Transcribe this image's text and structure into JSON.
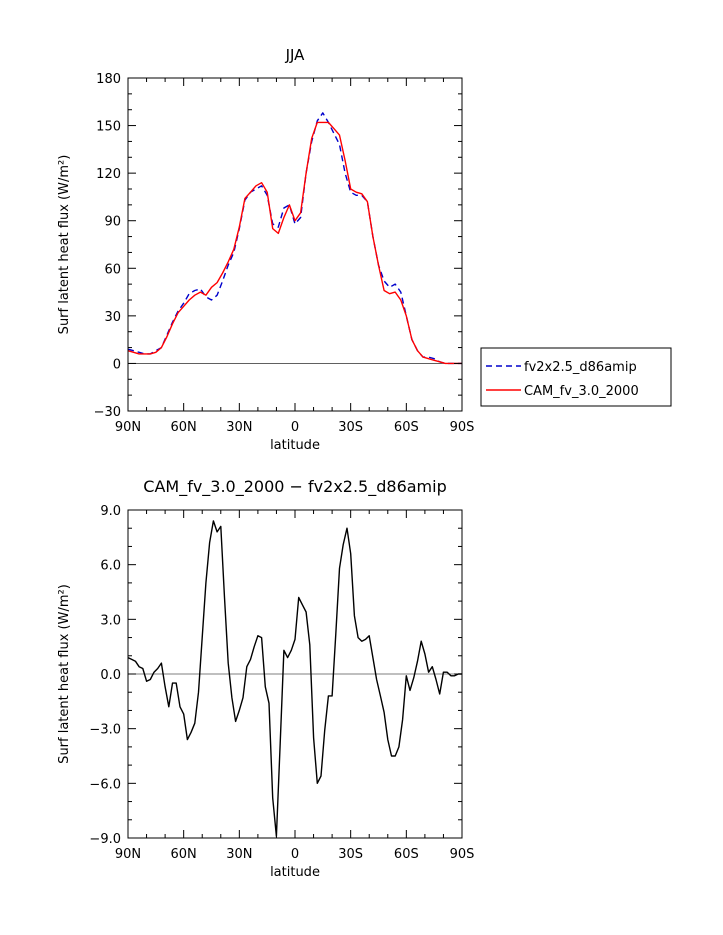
{
  "chart_data": [
    {
      "type": "line",
      "title": "JJA",
      "xlabel": "latitude",
      "ylabel": "Surf latent heat flux (W/m²)",
      "xlim": [
        90,
        -90
      ],
      "ylim": [
        -30,
        180
      ],
      "x_tick_values": [
        90,
        60,
        30,
        0,
        -30,
        -60,
        -90
      ],
      "x_tick_labels": [
        "90N",
        "60N",
        "30N",
        "0",
        "30S",
        "60S",
        "90S"
      ],
      "y_tick_values": [
        -30,
        0,
        30,
        60,
        90,
        120,
        150,
        180
      ],
      "y_tick_labels": [
        "−30",
        "0",
        "30",
        "60",
        "90",
        "120",
        "150",
        "180"
      ],
      "legend": "right-bottom",
      "x": [
        90,
        87,
        84,
        81,
        78,
        75,
        72,
        69,
        66,
        63,
        60,
        57,
        54,
        51,
        48,
        45,
        42,
        39,
        36,
        33,
        30,
        27,
        24,
        21,
        18,
        15,
        12,
        9,
        6,
        3,
        0,
        -3,
        -6,
        -9,
        -12,
        -15,
        -18,
        -21,
        -24,
        -27,
        -30,
        -33,
        -36,
        -39,
        -42,
        -45,
        -48,
        -51,
        -54,
        -57,
        -60,
        -63,
        -66,
        -69,
        -72,
        -75,
        -78,
        -81,
        -84,
        -87,
        -90
      ],
      "series": [
        {
          "name": "fv2x2.5_d86amip",
          "color": "#0000cc",
          "dash": "dashed",
          "values": [
            9,
            8,
            7,
            6,
            6,
            8,
            10,
            18,
            26,
            33,
            38,
            44,
            46,
            47,
            42,
            40,
            43,
            52,
            62,
            70,
            85,
            103,
            108,
            110,
            112,
            106,
            88,
            86,
            98,
            100,
            88,
            92,
            120,
            140,
            153,
            158,
            152,
            145,
            138,
            120,
            108,
            106,
            106,
            102,
            80,
            62,
            52,
            48,
            50,
            45,
            30,
            15,
            8,
            4,
            4,
            3,
            1,
            0,
            0,
            0,
            0
          ]
        },
        {
          "name": "CAM_fv_3.0_2000",
          "color": "#ff0000",
          "dash": "solid",
          "values": [
            8,
            7,
            6,
            6,
            6,
            7,
            10,
            17,
            25,
            32,
            36,
            40,
            43,
            45,
            43,
            48,
            51,
            57,
            64,
            72,
            86,
            104,
            108,
            112,
            114,
            108,
            85,
            82,
            92,
            100,
            90,
            95,
            120,
            142,
            152,
            152,
            152,
            148,
            144,
            128,
            110,
            108,
            107,
            102,
            80,
            62,
            46,
            44,
            45,
            40,
            30,
            15,
            8,
            4,
            3,
            2,
            1,
            0,
            0,
            0,
            0
          ]
        }
      ]
    },
    {
      "type": "line",
      "title": "CAM_fv_3.0_2000 − fv2x2.5_d86amip",
      "xlabel": "latitude",
      "ylabel": "Surf latent heat flux (W/m²)",
      "xlim": [
        90,
        -90
      ],
      "ylim": [
        -9,
        9
      ],
      "x_tick_values": [
        90,
        60,
        30,
        0,
        -30,
        -60,
        -90
      ],
      "x_tick_labels": [
        "90N",
        "60N",
        "30N",
        "0",
        "30S",
        "60S",
        "90S"
      ],
      "y_tick_values": [
        -9,
        -6,
        -3,
        0,
        3,
        6,
        9
      ],
      "y_tick_labels": [
        "−9.0",
        "−6.0",
        "−3.0",
        "0.0",
        "3.0",
        "6.0",
        "9.0"
      ],
      "x": [
        90,
        88,
        86,
        84,
        82,
        80,
        78,
        76,
        74,
        72,
        70,
        68,
        66,
        64,
        62,
        60,
        58,
        56,
        54,
        52,
        50,
        48,
        46,
        44,
        42,
        40,
        38,
        36,
        34,
        32,
        30,
        28,
        26,
        24,
        22,
        20,
        18,
        16,
        14,
        12,
        10,
        8,
        6,
        4,
        2,
        0,
        -2,
        -4,
        -6,
        -8,
        -10,
        -12,
        -14,
        -16,
        -18,
        -20,
        -22,
        -24,
        -26,
        -28,
        -30,
        -32,
        -34,
        -36,
        -38,
        -40,
        -42,
        -44,
        -46,
        -48,
        -50,
        -52,
        -54,
        -56,
        -58,
        -60,
        -62,
        -64,
        -66,
        -68,
        -70,
        -72,
        -74,
        -76,
        -78,
        -80,
        -82,
        -84,
        -86,
        -88,
        -90
      ],
      "series": [
        {
          "color": "#000000",
          "dash": "solid",
          "values": [
            0.9,
            0.8,
            0.7,
            0.4,
            0.3,
            -0.4,
            -0.3,
            0.1,
            0.3,
            0.6,
            -0.7,
            -1.8,
            -0.5,
            -0.5,
            -1.8,
            -2.2,
            -3.6,
            -3.2,
            -2.7,
            -1.0,
            2.0,
            5.0,
            7.2,
            8.4,
            7.8,
            8.1,
            4.2,
            0.6,
            -1.3,
            -2.6,
            -2.0,
            -1.3,
            0.4,
            0.8,
            1.5,
            2.1,
            2.0,
            -0.7,
            -1.6,
            -6.8,
            -8.9,
            -3.8,
            1.3,
            0.9,
            1.3,
            1.9,
            4.2,
            3.8,
            3.4,
            1.6,
            -3.5,
            -6.0,
            -5.6,
            -3.1,
            -1.2,
            -1.2,
            2.2,
            5.8,
            7.1,
            8.0,
            6.6,
            3.2,
            2.0,
            1.8,
            1.9,
            2.1,
            0.9,
            -0.3,
            -1.2,
            -2.1,
            -3.6,
            -4.5,
            -4.5,
            -4.0,
            -2.5,
            -0.1,
            -0.9,
            -0.2,
            0.7,
            1.8,
            1.1,
            0.1,
            0.4,
            -0.3,
            -1.1,
            0.1,
            0.1,
            -0.1,
            -0.1,
            0.0,
            0.0
          ]
        }
      ]
    }
  ]
}
